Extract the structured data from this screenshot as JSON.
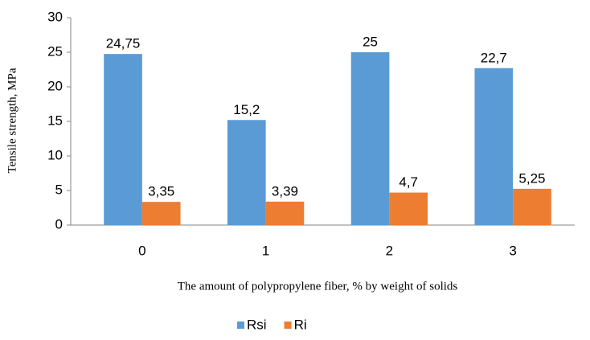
{
  "chart_data": {
    "type": "bar",
    "categories": [
      "0",
      "1",
      "2",
      "3"
    ],
    "series": [
      {
        "name": "Rsi",
        "color": "#5b9bd5",
        "values": [
          24.75,
          15.2,
          25,
          22.7
        ],
        "value_labels": [
          "24,75",
          "15,2",
          "25",
          "22,7"
        ]
      },
      {
        "name": "Ri",
        "color": "#ed7d31",
        "values": [
          3.35,
          3.39,
          4.7,
          5.25
        ],
        "value_labels": [
          "3,35",
          "3,39",
          "4,7",
          "5,25"
        ]
      }
    ],
    "y_label": "Tensile strength, MPa",
    "x_label": "The amount of polypropylene fiber, % by weight of solids",
    "ylim": [
      0,
      30
    ],
    "yticks": [
      0,
      5,
      10,
      15,
      20,
      25,
      30
    ],
    "grid": false,
    "legend": "bottom"
  }
}
